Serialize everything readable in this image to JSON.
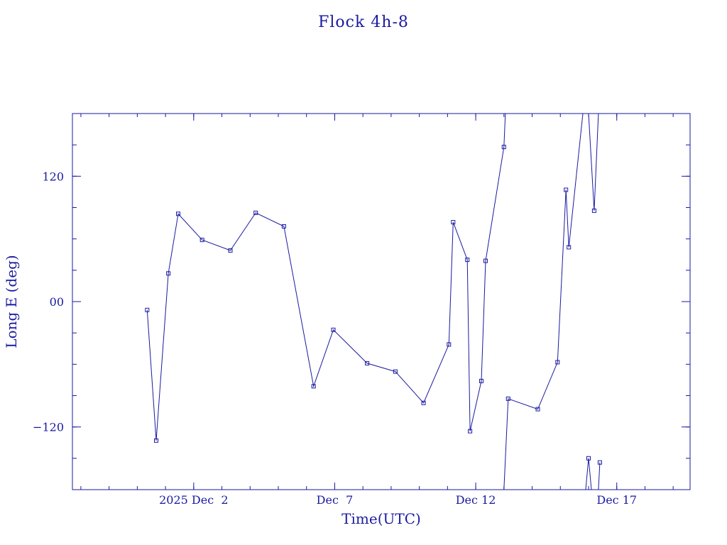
{
  "chart_data": {
    "type": "line",
    "title": "Flock 4h-8",
    "xlabel": "Time(UTC)",
    "ylabel": "Long E (deg)",
    "x_unit": "days of 2025 (day number of December)",
    "xlim": [
      -2.3,
      19.6
    ],
    "ylim": [
      -180,
      180
    ],
    "x_ticks": [
      {
        "value": 2,
        "label": "2025 Dec  2"
      },
      {
        "value": 7,
        "label": "Dec  7"
      },
      {
        "value": 12,
        "label": "Dec 12"
      },
      {
        "value": 17,
        "label": "Dec 17"
      }
    ],
    "y_ticks": [
      {
        "value": 120,
        "label": "120"
      },
      {
        "value": 0,
        "label": "00"
      },
      {
        "value": -120,
        "label": "−120"
      }
    ],
    "grid": false,
    "legend": "none",
    "marker": "square",
    "color": "#1a1aa0",
    "segments": [
      [
        {
          "x": 0.35,
          "y": -8
        },
        {
          "x": 0.67,
          "y": -133
        },
        {
          "x": 1.1,
          "y": 27
        },
        {
          "x": 1.45,
          "y": 84
        },
        {
          "x": 2.3,
          "y": 59
        },
        {
          "x": 3.3,
          "y": 49
        },
        {
          "x": 4.2,
          "y": 85
        },
        {
          "x": 5.2,
          "y": 72
        },
        {
          "x": 6.25,
          "y": -81
        },
        {
          "x": 6.95,
          "y": -27
        },
        {
          "x": 8.15,
          "y": -59
        },
        {
          "x": 9.15,
          "y": -67
        },
        {
          "x": 10.15,
          "y": -97
        },
        {
          "x": 11.05,
          "y": -41
        },
        {
          "x": 11.2,
          "y": 76
        },
        {
          "x": 11.7,
          "y": 40
        },
        {
          "x": 11.8,
          "y": -124
        },
        {
          "x": 12.2,
          "y": -76
        },
        {
          "x": 12.35,
          "y": 39
        },
        {
          "x": 13.0,
          "y": 148
        },
        {
          "x": 13.05,
          "y": 180
        }
      ],
      [
        {
          "x": 13.0,
          "y": -180
        },
        {
          "x": 13.15,
          "y": -93
        },
        {
          "x": 14.2,
          "y": -103
        },
        {
          "x": 14.9,
          "y": -58
        },
        {
          "x": 15.2,
          "y": 107
        },
        {
          "x": 15.3,
          "y": 52
        },
        {
          "x": 15.8,
          "y": 180
        }
      ],
      [
        {
          "x": 16.0,
          "y": 180
        },
        {
          "x": 16.2,
          "y": 87
        },
        {
          "x": 16.35,
          "y": 180
        }
      ],
      [
        {
          "x": 15.9,
          "y": -180
        },
        {
          "x": 16.0,
          "y": -150
        },
        {
          "x": 16.1,
          "y": -180
        }
      ],
      [
        {
          "x": 16.35,
          "y": -180
        },
        {
          "x": 16.4,
          "y": -154
        }
      ]
    ],
    "markers": [
      {
        "x": 0.35,
        "y": -8
      },
      {
        "x": 0.67,
        "y": -133
      },
      {
        "x": 1.1,
        "y": 27
      },
      {
        "x": 1.45,
        "y": 84
      },
      {
        "x": 2.3,
        "y": 59
      },
      {
        "x": 3.3,
        "y": 49
      },
      {
        "x": 4.2,
        "y": 85
      },
      {
        "x": 5.2,
        "y": 72
      },
      {
        "x": 6.25,
        "y": -81
      },
      {
        "x": 6.95,
        "y": -27
      },
      {
        "x": 8.15,
        "y": -59
      },
      {
        "x": 9.15,
        "y": -67
      },
      {
        "x": 10.15,
        "y": -97
      },
      {
        "x": 11.05,
        "y": -41
      },
      {
        "x": 11.2,
        "y": 76
      },
      {
        "x": 11.7,
        "y": 40
      },
      {
        "x": 11.8,
        "y": -124
      },
      {
        "x": 12.2,
        "y": -76
      },
      {
        "x": 12.35,
        "y": 39
      },
      {
        "x": 13.0,
        "y": 148
      },
      {
        "x": 13.15,
        "y": -93
      },
      {
        "x": 14.2,
        "y": -103
      },
      {
        "x": 14.9,
        "y": -58
      },
      {
        "x": 15.2,
        "y": 107
      },
      {
        "x": 15.3,
        "y": 52
      },
      {
        "x": 16.0,
        "y": -150
      },
      {
        "x": 16.2,
        "y": 87
      },
      {
        "x": 16.4,
        "y": -154
      }
    ]
  }
}
